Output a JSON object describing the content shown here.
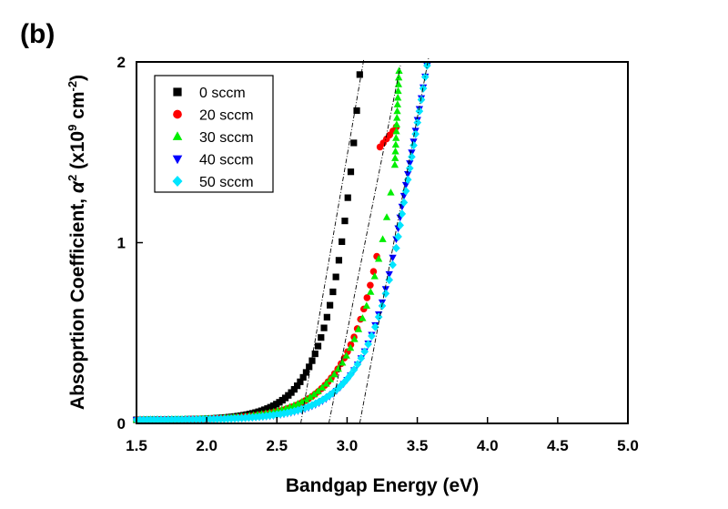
{
  "chart_data": {
    "type": "scatter",
    "panel_label": "(b)",
    "xlabel": "Bandgap Energy (eV)",
    "ylabel_main": "Absoprtion Coefficient, ",
    "ylabel_alpha": "α",
    "ylabel_units_open": " (x10",
    "ylabel_units_exp": "9",
    "ylabel_units_cm": " cm",
    "ylabel_units_cm_exp": "-2",
    "ylabel_units_close": ")",
    "xlim": [
      1.5,
      5.0
    ],
    "ylim": [
      0,
      2
    ],
    "x_ticks": [
      1.5,
      2.0,
      2.5,
      3.0,
      3.5,
      4.0,
      4.5,
      5.0
    ],
    "x_tick_labels": [
      "1.5",
      "2.0",
      "2.5",
      "3.0",
      "3.5",
      "4.0",
      "4.5",
      "5.0"
    ],
    "y_ticks": [
      0,
      1,
      2
    ],
    "y_tick_labels": [
      "0",
      "1",
      "2"
    ],
    "legend_position": "top-left",
    "series": [
      {
        "name": "0 sccm",
        "marker": "square",
        "color": "#000000",
        "e0": 1.5,
        "e_end": 3.09,
        "n": 75,
        "y_end": 1.93,
        "k": 5.2
      },
      {
        "name": "20 sccm",
        "marker": "circle",
        "color": "#ff0000",
        "e0": 1.5,
        "e_end": 3.35,
        "n": 80,
        "y_end": 1.64,
        "k": 4.2,
        "bend": true
      },
      {
        "name": "30 sccm",
        "marker": "triangle-up",
        "color": "#00ee00",
        "e0": 1.5,
        "e_end": 3.37,
        "n": 78,
        "y_end": 1.95,
        "k": 4.0,
        "jump_from": 3.34,
        "jump_y": 1.43
      },
      {
        "name": "40 sccm",
        "marker": "triangle-down",
        "color": "#0000ff",
        "e0": 1.5,
        "e_end": 3.57,
        "n": 90,
        "y_end": 1.98,
        "k": 4.3,
        "jump_from": 3.35,
        "jump_y": 1.02
      },
      {
        "name": "50 sccm",
        "marker": "diamond",
        "color": "#00e5ff",
        "e0": 1.5,
        "e_end": 3.57,
        "n": 90,
        "y_end": 1.98,
        "k": 4.1,
        "jump_from": 3.35,
        "jump_y": 0.97
      }
    ],
    "tangent_lines": [
      {
        "x": [
          2.67,
          3.12
        ],
        "y": [
          0,
          2.02
        ]
      },
      {
        "x": [
          2.87,
          3.38
        ],
        "y": [
          0,
          1.98
        ]
      },
      {
        "x": [
          3.09,
          3.58
        ],
        "y": [
          0,
          2.02
        ]
      }
    ]
  }
}
